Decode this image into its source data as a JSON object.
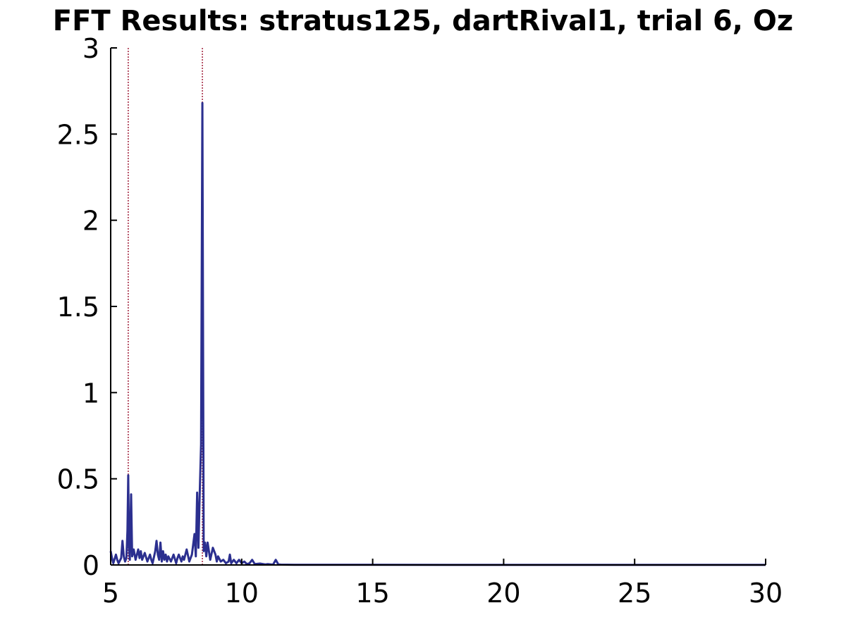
{
  "chart_data": {
    "type": "line",
    "title": "FFT Results: stratus125, dartRival1, trial 6, Oz",
    "xlabel": "",
    "ylabel": "",
    "xlim": [
      5,
      30
    ],
    "ylim": [
      0,
      3
    ],
    "xticks": [
      5,
      10,
      15,
      20,
      25,
      30
    ],
    "xtick_labels": [
      "5",
      "10",
      "15",
      "20",
      "25",
      "30"
    ],
    "yticks": [
      0,
      0.5,
      1,
      1.5,
      2,
      2.5,
      3
    ],
    "ytick_labels": [
      "0",
      "0.5",
      "1",
      "1.5",
      "2",
      "2.5",
      "3"
    ],
    "grid": false,
    "legend": "none",
    "reference_lines_x": [
      5.67,
      8.5
    ],
    "colors": {
      "series": "#2b2f8f",
      "reference": "#a0203a",
      "axis": "#000000"
    },
    "series": [
      {
        "x": [
          5.0,
          5.05,
          5.1,
          5.2,
          5.25,
          5.3,
          5.4,
          5.45,
          5.5,
          5.55,
          5.6,
          5.64,
          5.67,
          5.7,
          5.73,
          5.78,
          5.82,
          5.88,
          5.95,
          6.0,
          6.05,
          6.1,
          6.15,
          6.2,
          6.3,
          6.4,
          6.5,
          6.55,
          6.6,
          6.7,
          6.75,
          6.8,
          6.85,
          6.9,
          6.95,
          7.0,
          7.05,
          7.1,
          7.15,
          7.2,
          7.3,
          7.4,
          7.5,
          7.55,
          7.6,
          7.7,
          7.75,
          7.8,
          7.9,
          8.0,
          8.1,
          8.2,
          8.25,
          8.3,
          8.35,
          8.4,
          8.45,
          8.5,
          8.55,
          8.6,
          8.65,
          8.7,
          8.8,
          8.9,
          9.0,
          9.05,
          9.1,
          9.2,
          9.3,
          9.4,
          9.5,
          9.55,
          9.6,
          9.7,
          9.8,
          9.9,
          10.0,
          10.1,
          10.2,
          10.3,
          10.4,
          10.5,
          10.7,
          10.9,
          11.0,
          11.2,
          11.3,
          11.4,
          11.5,
          12.0,
          13.0,
          14.0,
          15.0,
          20.0,
          25.0,
          30.0
        ],
        "y": [
          0.08,
          0.04,
          0.01,
          0.06,
          0.03,
          0.01,
          0.04,
          0.14,
          0.05,
          0.02,
          0.04,
          0.2,
          0.52,
          0.1,
          0.03,
          0.41,
          0.05,
          0.09,
          0.03,
          0.06,
          0.09,
          0.04,
          0.08,
          0.03,
          0.07,
          0.02,
          0.06,
          0.03,
          0.01,
          0.08,
          0.14,
          0.06,
          0.03,
          0.13,
          0.02,
          0.08,
          0.03,
          0.06,
          0.02,
          0.05,
          0.02,
          0.06,
          0.01,
          0.04,
          0.06,
          0.02,
          0.05,
          0.03,
          0.09,
          0.02,
          0.06,
          0.18,
          0.05,
          0.42,
          0.1,
          0.42,
          0.7,
          2.68,
          0.08,
          0.13,
          0.05,
          0.13,
          0.03,
          0.1,
          0.06,
          0.02,
          0.05,
          0.02,
          0.03,
          0.01,
          0.02,
          0.06,
          0.01,
          0.03,
          0.01,
          0.03,
          0.01,
          0.02,
          0.005,
          0.01,
          0.03,
          0.005,
          0.008,
          0.003,
          0.005,
          0.002,
          0.03,
          0.003,
          0.002,
          0.001,
          0.001,
          0.001,
          0.001,
          0.0005,
          0.0005,
          0.0005
        ]
      }
    ]
  }
}
